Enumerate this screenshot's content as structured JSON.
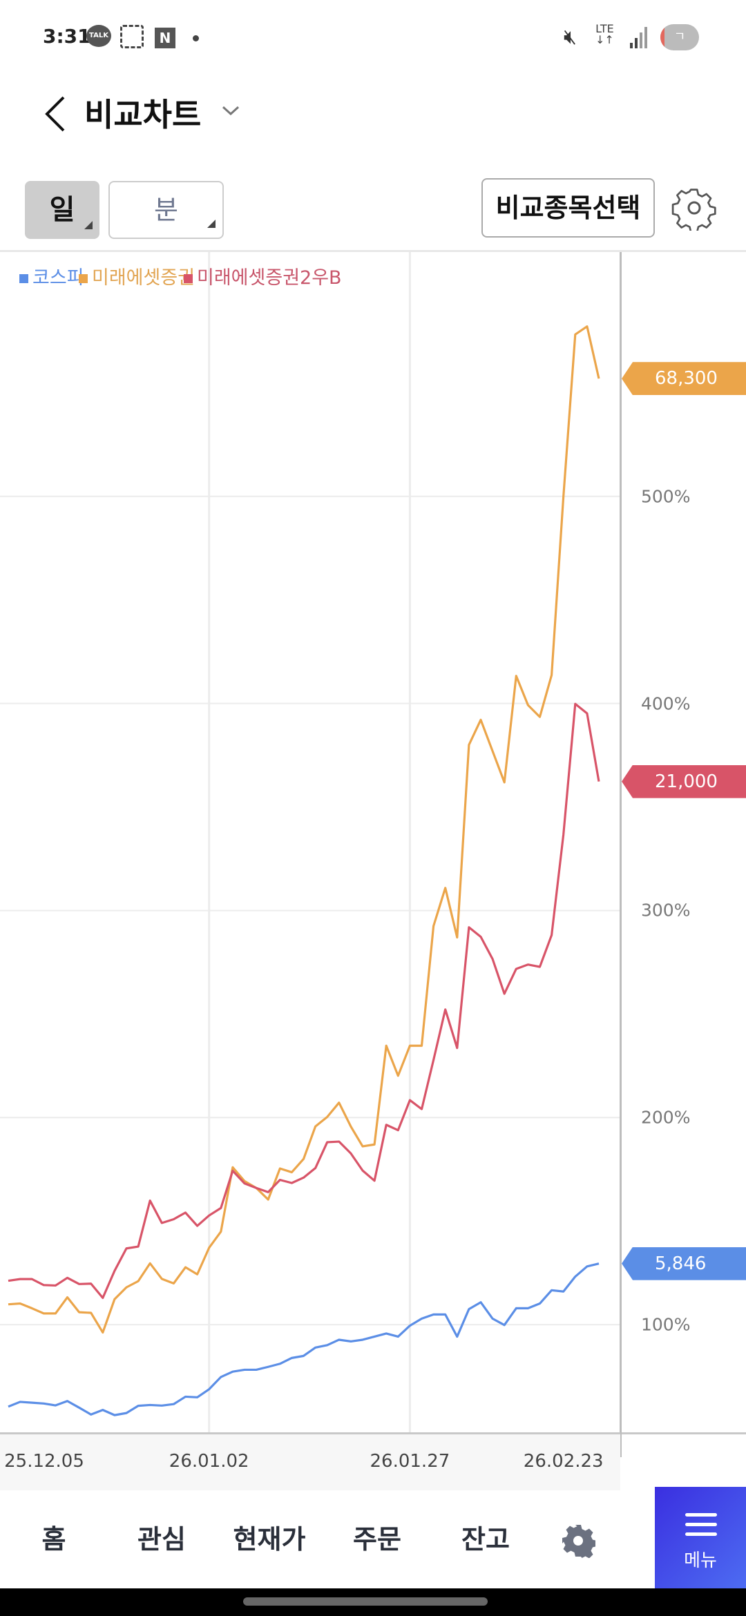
{
  "status_bar": {
    "time": "3:31",
    "talk_label": "TALK",
    "n_label": "N",
    "network": "LTE",
    "battery_label": "ㄱ"
  },
  "header": {
    "title": "비교차트",
    "back_icon": "chevron-left-icon",
    "dropdown_icon": "chevron-down-icon"
  },
  "controls": {
    "period_day": "일",
    "period_minute": "분",
    "compare_select": "비교종목선택",
    "settings_icon": "gear-icon"
  },
  "colors": {
    "kospi": "#5b8ee6",
    "mirae": "#eba54a",
    "mirae_pref": "#d85468",
    "menu": "#3f45e6"
  },
  "chart_data": {
    "type": "line",
    "legend_position": "top-left",
    "grid": true,
    "y_axis_position": "right",
    "ylim": [
      48,
      618
    ],
    "y_ticks": [
      100,
      200,
      300,
      400,
      500
    ],
    "y_tick_labels": [
      "100%",
      "200%",
      "300%",
      "400%",
      "500%"
    ],
    "x_tick_labels": [
      {
        "index": 3,
        "label": "25.12.05"
      },
      {
        "index": 17,
        "label": "26.01.02"
      },
      {
        "index": 34,
        "label": "26.01.27"
      },
      {
        "index": 47,
        "label": "26.02.23"
      }
    ],
    "x_gridlines_at_index": [
      17,
      34
    ],
    "series": [
      {
        "name": "코스피",
        "color": "#5b8ee6",
        "last_price": "5,846",
        "values": [
          60.4,
          62.7,
          62.3,
          61.9,
          61.0,
          63.1,
          59.9,
          56.6,
          58.8,
          56.3,
          57.3,
          60.8,
          61.2,
          60.9,
          61.6,
          65.2,
          64.9,
          68.8,
          74.7,
          77.3,
          78.2,
          78.2,
          79.6,
          81.1,
          83.9,
          84.9,
          88.9,
          90.1,
          92.7,
          91.9,
          92.7,
          94.2,
          95.7,
          94.2,
          99.5,
          102.9,
          104.9,
          104.9,
          94.2,
          107.5,
          110.8,
          102.9,
          99.8,
          107.9,
          107.9,
          110.2,
          116.6,
          116.0,
          123.2,
          128.1,
          129.5
        ]
      },
      {
        "name": "미래에셋증권",
        "color": "#eba54a",
        "last_price": "68,300",
        "values": [
          109.8,
          110.2,
          107.9,
          105.4,
          105.4,
          113.2,
          106.0,
          105.7,
          96.2,
          112.3,
          118.0,
          121.0,
          129.6,
          122.1,
          119.9,
          127.7,
          124.3,
          137.1,
          144.9,
          176.0,
          169.3,
          166.0,
          160.4,
          175.4,
          173.6,
          180.0,
          195.7,
          200.3,
          207.2,
          195.7,
          186.1,
          187.0,
          234.7,
          220.2,
          234.7,
          234.7,
          292.5,
          310.9,
          287.0,
          380.0,
          392.1,
          377.0,
          361.9,
          413.3,
          399.2,
          393.5,
          413.7,
          500.0,
          578.2,
          582.1,
          556.9
        ]
      },
      {
        "name": "미래에셋증권2우B",
        "color": "#d85468",
        "last_price": "21,000",
        "values": [
          121.2,
          122.0,
          122.0,
          119.1,
          118.9,
          122.6,
          119.6,
          119.8,
          112.9,
          126.0,
          136.8,
          137.7,
          159.9,
          149.1,
          150.9,
          154.1,
          147.7,
          152.7,
          156.3,
          174.3,
          168.2,
          166.0,
          164.0,
          169.9,
          168.4,
          171.0,
          175.6,
          188.1,
          188.4,
          182.7,
          174.4,
          169.5,
          196.5,
          193.9,
          208.4,
          204.1,
          227.8,
          252.2,
          233.6,
          291.9,
          287.3,
          276.6,
          259.8,
          271.8,
          273.9,
          272.8,
          288.1,
          336.7,
          399.8,
          395.2,
          362.3
        ]
      }
    ]
  },
  "bottom_nav": {
    "items": [
      "홈",
      "관심",
      "현재가",
      "주문",
      "잔고"
    ],
    "settings_icon": "gear-icon",
    "menu_label": "메뉴"
  }
}
